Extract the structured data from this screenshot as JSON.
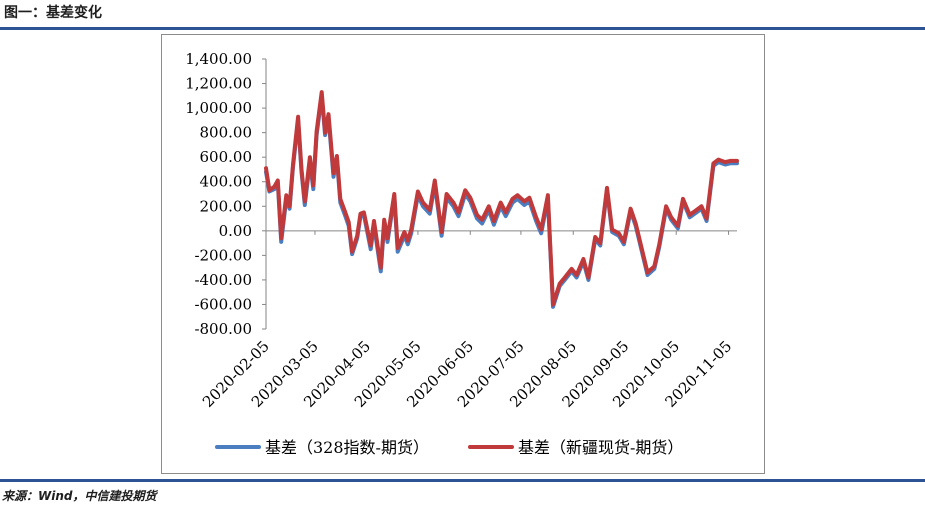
{
  "header": {
    "title": "图一：基差变化"
  },
  "footer": {
    "source": "来源：Wind，中信建投期货"
  },
  "chart_data": {
    "type": "line",
    "x": [
      "2020-02-05",
      "2020-02-07",
      "2020-02-10",
      "2020-02-12",
      "2020-02-14",
      "2020-02-17",
      "2020-02-19",
      "2020-02-21",
      "2020-02-24",
      "2020-02-26",
      "2020-02-28",
      "2020-03-02",
      "2020-03-04",
      "2020-03-06",
      "2020-03-09",
      "2020-03-11",
      "2020-03-13",
      "2020-03-16",
      "2020-03-18",
      "2020-03-20",
      "2020-03-23",
      "2020-03-25",
      "2020-03-27",
      "2020-03-30",
      "2020-04-01",
      "2020-04-03",
      "2020-04-07",
      "2020-04-09",
      "2020-04-13",
      "2020-04-15",
      "2020-04-17",
      "2020-04-21",
      "2020-04-23",
      "2020-04-27",
      "2020-04-29",
      "2020-05-01",
      "2020-05-05",
      "2020-05-08",
      "2020-05-12",
      "2020-05-15",
      "2020-05-19",
      "2020-05-22",
      "2020-05-26",
      "2020-05-29",
      "2020-06-02",
      "2020-06-05",
      "2020-06-09",
      "2020-06-12",
      "2020-06-16",
      "2020-06-19",
      "2020-06-23",
      "2020-06-26",
      "2020-06-30",
      "2020-07-03",
      "2020-07-07",
      "2020-07-10",
      "2020-07-14",
      "2020-07-17",
      "2020-07-21",
      "2020-07-24",
      "2020-07-28",
      "2020-07-31",
      "2020-08-04",
      "2020-08-07",
      "2020-08-11",
      "2020-08-14",
      "2020-08-18",
      "2020-08-21",
      "2020-08-25",
      "2020-08-28",
      "2020-09-01",
      "2020-09-04",
      "2020-09-08",
      "2020-09-11",
      "2020-09-15",
      "2020-09-18",
      "2020-09-22",
      "2020-09-25",
      "2020-09-29",
      "2020-10-02",
      "2020-10-06",
      "2020-10-09",
      "2020-10-13",
      "2020-10-16",
      "2020-10-20",
      "2020-10-23",
      "2020-10-27",
      "2020-10-30",
      "2020-11-03",
      "2020-11-06",
      "2020-11-10"
    ],
    "xticks": [
      "2020-02-05",
      "2020-03-05",
      "2020-04-05",
      "2020-05-05",
      "2020-06-05",
      "2020-07-05",
      "2020-08-05",
      "2020-09-05",
      "2020-10-05",
      "2020-11-05"
    ],
    "yticks": [
      "1,400.00",
      "1,200.00",
      "1,000.00",
      "800.00",
      "600.00",
      "400.00",
      "200.00",
      "0.00",
      "-200.00",
      "-400.00",
      "-600.00",
      "-800.00"
    ],
    "ylim": [
      -800,
      1400
    ],
    "series": [
      {
        "name": "基差（328指数-期货）",
        "color": "#4a7ec1",
        "values": [
          480,
          320,
          340,
          390,
          -90,
          260,
          180,
          520,
          900,
          480,
          210,
          560,
          340,
          780,
          1100,
          780,
          920,
          440,
          590,
          230,
          120,
          40,
          -190,
          -60,
          120,
          130,
          -150,
          50,
          -330,
          60,
          -90,
          280,
          -170,
          -40,
          -110,
          -20,
          290,
          200,
          140,
          380,
          -40,
          270,
          200,
          120,
          300,
          240,
          100,
          60,
          170,
          50,
          200,
          120,
          230,
          260,
          210,
          240,
          80,
          -20,
          260,
          -620,
          -450,
          -400,
          -330,
          -380,
          -250,
          -400,
          -70,
          -120,
          330,
          -10,
          -40,
          -110,
          160,
          40,
          -190,
          -360,
          -310,
          -130,
          180,
          90,
          20,
          240,
          110,
          140,
          180,
          80,
          530,
          560,
          540,
          550,
          550
        ]
      },
      {
        "name": "基差（新疆现货-期货）",
        "color": "#c0393b",
        "values": [
          510,
          330,
          360,
          410,
          -60,
          290,
          200,
          540,
          930,
          500,
          240,
          600,
          370,
          810,
          1130,
          800,
          950,
          470,
          610,
          260,
          150,
          70,
          -170,
          -40,
          140,
          150,
          -120,
          80,
          -300,
          90,
          -60,
          300,
          -140,
          -10,
          -80,
          10,
          320,
          230,
          170,
          410,
          -10,
          300,
          230,
          150,
          330,
          270,
          130,
          90,
          200,
          80,
          230,
          150,
          260,
          290,
          240,
          270,
          110,
          10,
          290,
          -600,
          -430,
          -380,
          -310,
          -360,
          -230,
          -380,
          -50,
          -100,
          350,
          10,
          -20,
          -90,
          180,
          60,
          -170,
          -340,
          -290,
          -110,
          200,
          110,
          40,
          260,
          130,
          160,
          200,
          100,
          550,
          580,
          560,
          570,
          570
        ]
      }
    ]
  }
}
